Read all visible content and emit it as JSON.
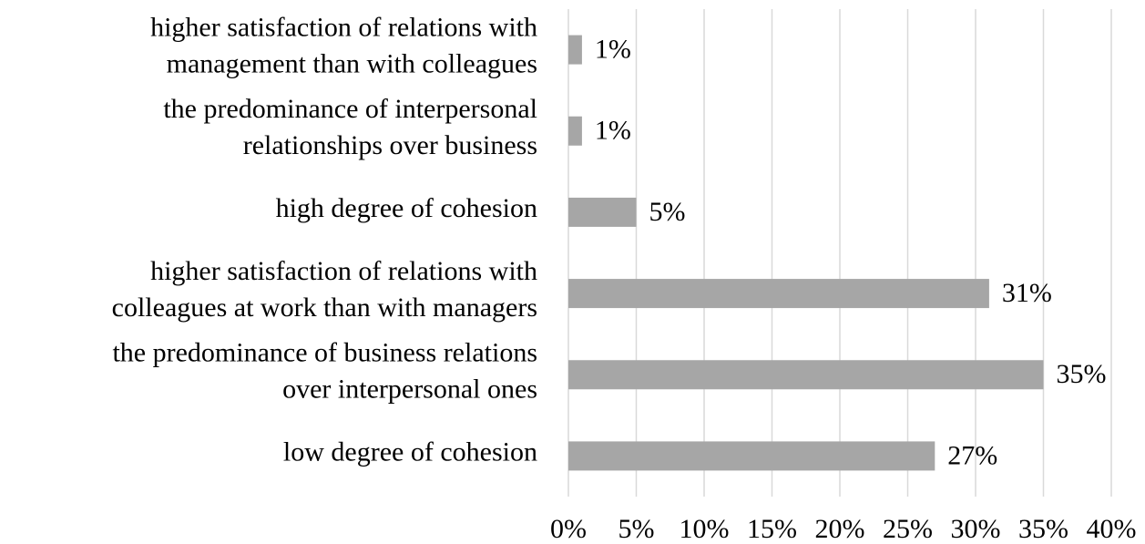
{
  "chart_data": {
    "type": "barh",
    "categories": [
      [
        "higher satisfaction of relations with",
        "management than with colleagues"
      ],
      [
        "the predominance of interpersonal",
        "relationships over business"
      ],
      [
        "high degree of cohesion"
      ],
      [
        "higher satisfaction of relations with",
        "colleagues at work than with managers"
      ],
      [
        "the predominance of business relations",
        "over interpersonal ones"
      ],
      [
        "low degree of cohesion"
      ]
    ],
    "values": [
      1,
      1,
      5,
      31,
      35,
      27
    ],
    "value_labels": [
      "1%",
      "1%",
      "5%",
      "31%",
      "35%",
      "27%"
    ],
    "color": "#a6a6a6",
    "xlim": [
      0,
      40
    ],
    "xticks": [
      {
        "value": 0,
        "label": "0%"
      },
      {
        "value": 5,
        "label": "5%"
      },
      {
        "value": 10,
        "label": "10%"
      },
      {
        "value": 15,
        "label": "15%"
      },
      {
        "value": 20,
        "label": "20%"
      },
      {
        "value": 25,
        "label": "25%"
      },
      {
        "value": 30,
        "label": "30%"
      },
      {
        "value": 35,
        "label": "35%"
      },
      {
        "value": 40,
        "label": "40%"
      }
    ],
    "grid": true
  }
}
